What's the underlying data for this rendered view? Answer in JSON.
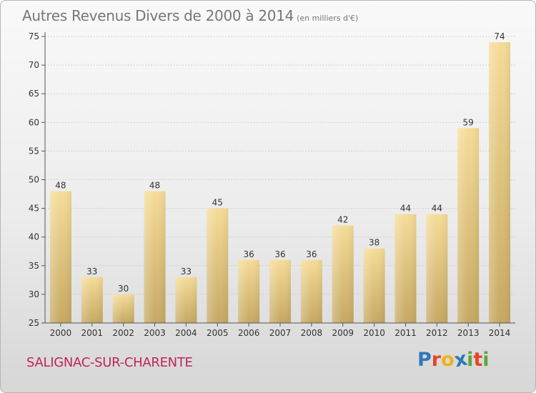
{
  "title": "Autres Revenus Divers de 2000 à 2014",
  "title_unit": "(en milliers d'€)",
  "commune": "SALIGNAC-SUR-CHARENTE",
  "logo": {
    "text": "Proxiti",
    "letters": [
      {
        "ch": "P",
        "color": "#2f79b8"
      },
      {
        "ch": "r",
        "color": "#e8432a"
      },
      {
        "ch": "o",
        "color": "#f0b21a"
      },
      {
        "ch": "x",
        "color": "#2f79b8"
      },
      {
        "ch": "i",
        "color": "#5aa83c"
      },
      {
        "ch": "t",
        "color": "#e8432a"
      },
      {
        "ch": "i",
        "color": "#5aa83c"
      }
    ]
  },
  "colors": {
    "bar_light": "#f5dc98",
    "bar_dark": "#c6a862",
    "axis": "#555555",
    "grid": "#cfcfcf",
    "text": "#333333"
  },
  "chart_data": {
    "type": "bar",
    "categories": [
      "2000",
      "2001",
      "2002",
      "2003",
      "2004",
      "2005",
      "2006",
      "2007",
      "2008",
      "2009",
      "2010",
      "2011",
      "2012",
      "2013",
      "2014"
    ],
    "values": [
      48,
      33,
      30,
      48,
      33,
      45,
      36,
      36,
      36,
      42,
      38,
      44,
      44,
      59,
      74
    ],
    "data_labels": [
      "48",
      "33",
      "30",
      "48",
      "33",
      "45",
      "36",
      "36",
      "36",
      "42",
      "38",
      "44",
      "44",
      "59",
      "74"
    ],
    "ylim": [
      25,
      75
    ],
    "yticks": [
      25,
      30,
      35,
      40,
      45,
      50,
      55,
      60,
      65,
      70,
      75
    ],
    "grid": true,
    "xlabel": "",
    "ylabel": ""
  }
}
